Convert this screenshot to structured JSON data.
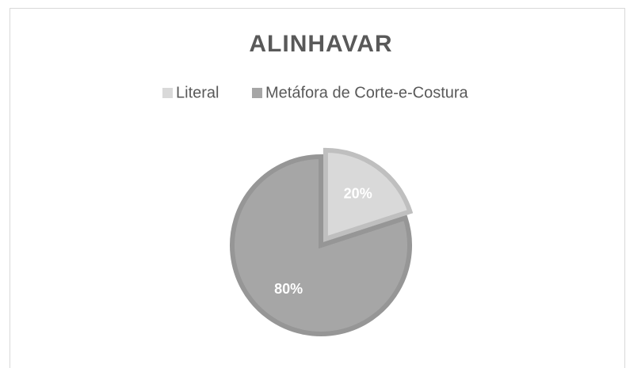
{
  "chart_data": {
    "type": "pie",
    "title": "ALINHAVAR",
    "categories": [
      "Literal",
      "Metáfora de Corte-e-Costura"
    ],
    "values": [
      20,
      80
    ],
    "value_labels": [
      "20%",
      "80%"
    ],
    "colors": [
      "#d9d9d9",
      "#a6a6a6"
    ],
    "legend": "top"
  }
}
